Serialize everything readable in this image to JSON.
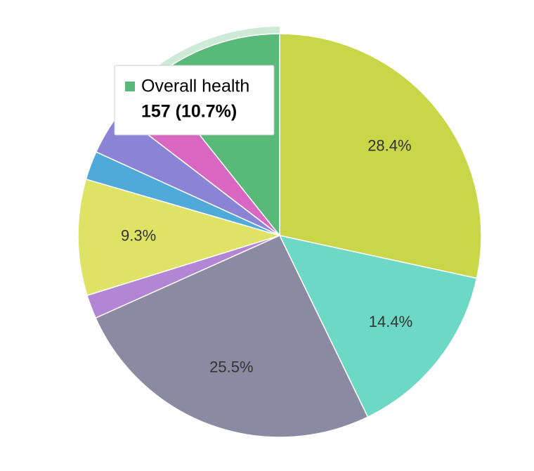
{
  "chart_data": {
    "type": "pie",
    "categories": [
      null,
      null,
      null,
      null,
      null,
      null,
      null,
      null,
      "Overall health"
    ],
    "values": [
      28.4,
      14.4,
      25.5,
      1.9,
      9.3,
      2.3,
      3.6,
      3.9,
      10.7
    ],
    "value_labels": [
      "28.4%",
      "14.4%",
      "25.5%",
      null,
      "9.3%",
      null,
      null,
      null,
      null
    ],
    "colors": [
      "#c8d647",
      "#6dd8c6",
      "#8c8aa3",
      "#b286d4",
      "#dfe365",
      "#4fa9d9",
      "#8b84d6",
      "#d966c0",
      "#58b978"
    ],
    "highlight": 8,
    "tooltip": {
      "text": "157 (10.7%)"
    }
  }
}
